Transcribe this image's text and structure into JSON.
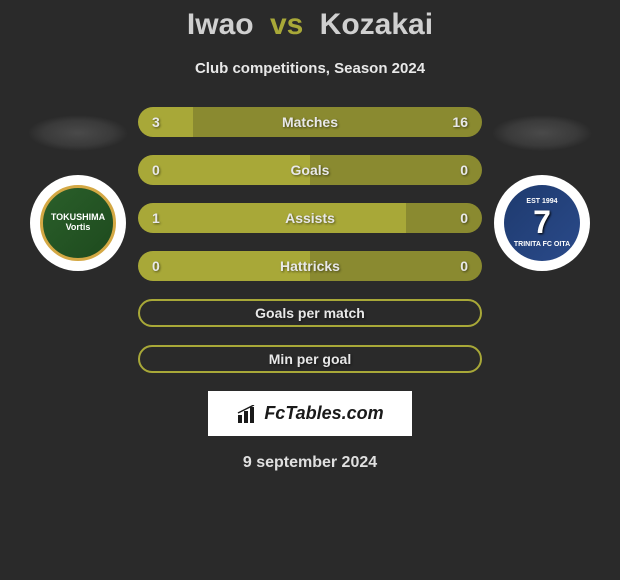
{
  "title": {
    "player1": "Iwao",
    "vs": "vs",
    "player2": "Kozakai",
    "player1_color": "#d0d0d0",
    "player2_color": "#d0d0d0",
    "vs_color": "#a8a838"
  },
  "subtitle": "Club competitions, Season 2024",
  "player1_club": "TOKUSHIMA Vortis",
  "player2_club": "TRINITA FC OITA",
  "player2_est": "EST 1994",
  "player2_num": "7",
  "colors": {
    "bar_player1": "#a8a838",
    "bar_player2": "#8a8a30",
    "bar_border": "#a8a838",
    "neutral": "#6e6e2a"
  },
  "stats": [
    {
      "label": "Matches",
      "val1": "3",
      "val2": "16",
      "ratio1": 0.16,
      "color1": "#a8a838",
      "color2": "#8a8a30"
    },
    {
      "label": "Goals",
      "val1": "0",
      "val2": "0",
      "ratio1": 0.5,
      "color1": "#a8a838",
      "color2": "#8a8a30"
    },
    {
      "label": "Assists",
      "val1": "1",
      "val2": "0",
      "ratio1": 0.78,
      "color1": "#a8a838",
      "color2": "#8a8a30"
    },
    {
      "label": "Hattricks",
      "val1": "0",
      "val2": "0",
      "ratio1": 0.5,
      "color1": "#a8a838",
      "color2": "#8a8a30"
    },
    {
      "label": "Goals per match",
      "val1": "",
      "val2": "",
      "ratio1": 0,
      "empty": true
    },
    {
      "label": "Min per goal",
      "val1": "",
      "val2": "",
      "ratio1": 0,
      "empty": true
    }
  ],
  "watermark": "FcTables.com",
  "date": "9 september 2024"
}
